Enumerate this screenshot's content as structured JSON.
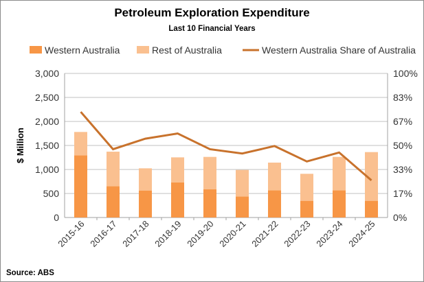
{
  "chart_data": {
    "type": "bar",
    "stacked": true,
    "title": "Petroleum Exploration Expenditure",
    "subtitle": "Last 10 Financial Years",
    "ylabel": "$ Million",
    "ylim": [
      0,
      3000
    ],
    "yticks": [
      "0",
      "500",
      "1,000",
      "1,500",
      "2,000",
      "2,500",
      "3,000"
    ],
    "y2lim": [
      0,
      100
    ],
    "y2ticks": [
      "0%",
      "17%",
      "33%",
      "50%",
      "67%",
      "83%",
      "100%"
    ],
    "grid": true,
    "legend_position": "top",
    "categories": [
      "2015-16",
      "2016-17",
      "2017-18",
      "2018-19",
      "2019-20",
      "2020-21",
      "2021-22",
      "2022-23",
      "2023-24",
      "2024-25"
    ],
    "series": [
      {
        "name": "Western Australia",
        "kind": "bar",
        "color": "#f79646",
        "values": [
          1295,
          652,
          562,
          729,
          590,
          438,
          567,
          348,
          567,
          348
        ]
      },
      {
        "name": "Rest of Australia",
        "kind": "bar",
        "color": "#fac090",
        "values": [
          486,
          719,
          462,
          523,
          672,
          552,
          576,
          562,
          695,
          1014
        ]
      },
      {
        "name": "Western Australia Share of Australia",
        "kind": "line",
        "axis": "right",
        "unit": "%",
        "color": "#c8722c",
        "values": [
          73.3,
          47.4,
          54.7,
          58.3,
          47.4,
          44.4,
          49.6,
          38.9,
          45.1,
          25.8
        ]
      }
    ],
    "source": "Source: ABS"
  }
}
